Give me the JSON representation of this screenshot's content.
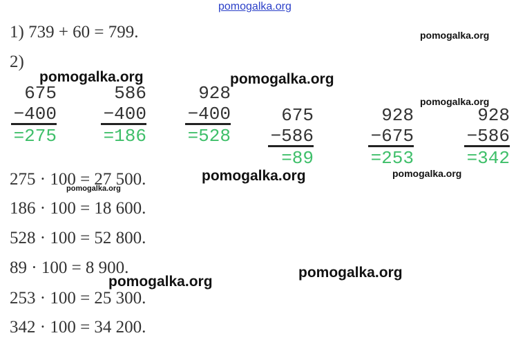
{
  "header": {
    "link": "pomogalka.org"
  },
  "part1": "1) 739 + 60 = 799.",
  "part2_label": "2)",
  "subtractions": [
    {
      "minuend": "675",
      "subtrahend": "−400",
      "result": "=275"
    },
    {
      "minuend": "586",
      "subtrahend": "−400",
      "result": "=186"
    },
    {
      "minuend": "928",
      "subtrahend": "−400",
      "result": "=528"
    },
    {
      "minuend": "675",
      "subtrahend": "−586",
      "result": "=89"
    },
    {
      "minuend": "928",
      "subtrahend": "−675",
      "result": "=253"
    },
    {
      "minuend": "928",
      "subtrahend": "−586",
      "result": "=342"
    }
  ],
  "products": [
    "275 · 100 = 27 500.",
    "186 · 100 = 18 600.",
    "528 · 100 = 52 800.",
    "89 · 100 = 8 900.",
    "253 · 100 = 25 300.",
    "342 · 100 = 34 200."
  ],
  "watermarks": [
    "pomogalka.org",
    "pomogalka.org",
    "pomogalka.org",
    "pomogalka.org",
    "pomogalka.org",
    "pomogalka.org",
    "pomogalka.org",
    "pomogalka.org",
    "pomogalka.org"
  ]
}
